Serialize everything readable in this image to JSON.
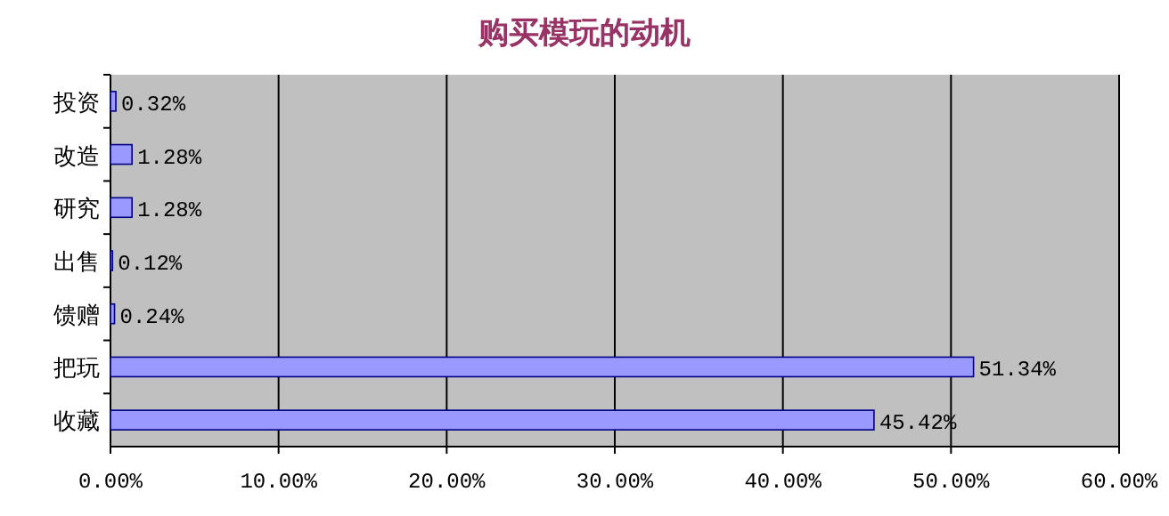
{
  "chart_data": {
    "type": "bar",
    "orientation": "horizontal",
    "title": "购买模玩的动机",
    "categories": [
      "投资",
      "改造",
      "研究",
      "出售",
      "馈赠",
      "把玩",
      "收藏"
    ],
    "values": [
      0.32,
      1.28,
      1.28,
      0.12,
      0.24,
      51.34,
      45.42
    ],
    "value_labels": [
      "0.32%",
      "1.28%",
      "1.28%",
      "0.12%",
      "0.24%",
      "51.34%",
      "45.42%"
    ],
    "color": "#9999ff",
    "xlim": [
      0,
      60
    ],
    "xticks": [
      {
        "value": 0,
        "label": "0.00%"
      },
      {
        "value": 10,
        "label": "10.00%"
      },
      {
        "value": 20,
        "label": "20.00%"
      },
      {
        "value": 30,
        "label": "30.00%"
      },
      {
        "value": 40,
        "label": "40.00%"
      },
      {
        "value": 50,
        "label": "50.00%"
      },
      {
        "value": 60,
        "label": "60.00%"
      }
    ],
    "grid": "x"
  }
}
